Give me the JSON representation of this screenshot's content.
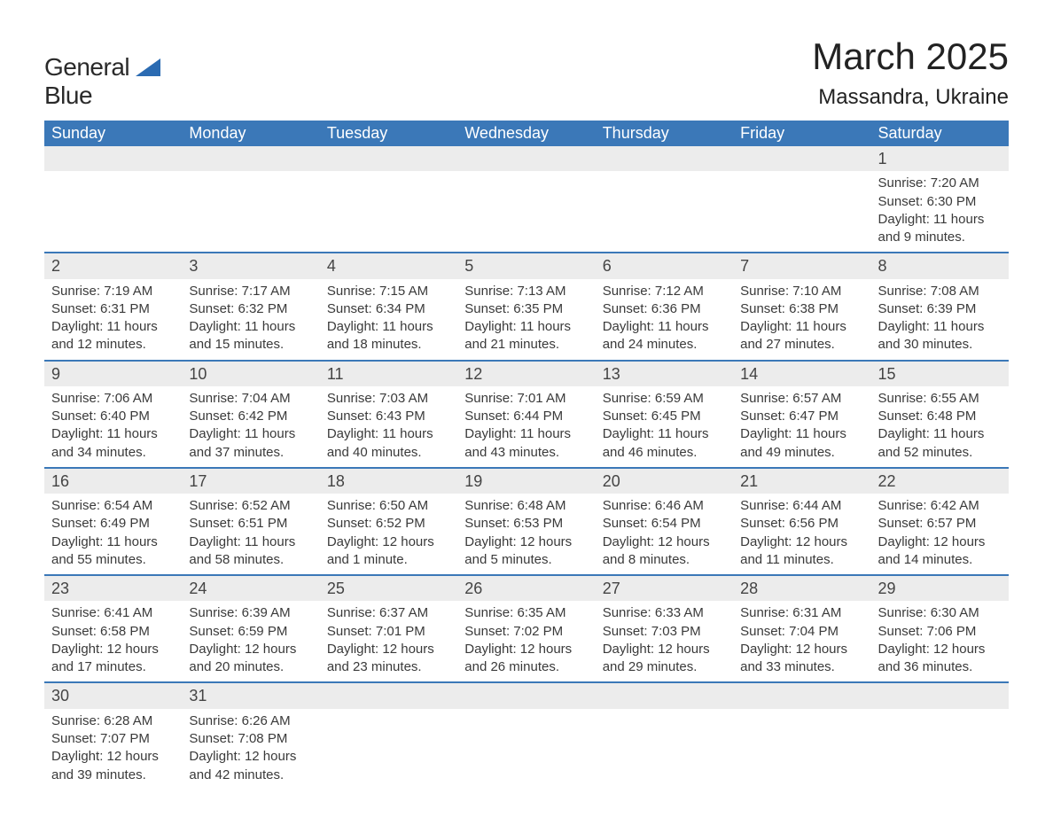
{
  "brand": {
    "name_part1": "General",
    "name_part2": "Blue",
    "arrow_color": "#2b6bb2"
  },
  "title": "March 2025",
  "location": "Massandra, Ukraine",
  "header_bg": "#3b78b8",
  "header_fg": "#ffffff",
  "divider_color": "#3b78b8",
  "daynum_bg": "#ececec",
  "text_color": "#3a3a3a",
  "columns": [
    "Sunday",
    "Monday",
    "Tuesday",
    "Wednesday",
    "Thursday",
    "Friday",
    "Saturday"
  ],
  "weeks": [
    [
      null,
      null,
      null,
      null,
      null,
      null,
      {
        "d": "1",
        "sunrise": "7:20 AM",
        "sunset": "6:30 PM",
        "daylight": "11 hours and 9 minutes."
      }
    ],
    [
      {
        "d": "2",
        "sunrise": "7:19 AM",
        "sunset": "6:31 PM",
        "daylight": "11 hours and 12 minutes."
      },
      {
        "d": "3",
        "sunrise": "7:17 AM",
        "sunset": "6:32 PM",
        "daylight": "11 hours and 15 minutes."
      },
      {
        "d": "4",
        "sunrise": "7:15 AM",
        "sunset": "6:34 PM",
        "daylight": "11 hours and 18 minutes."
      },
      {
        "d": "5",
        "sunrise": "7:13 AM",
        "sunset": "6:35 PM",
        "daylight": "11 hours and 21 minutes."
      },
      {
        "d": "6",
        "sunrise": "7:12 AM",
        "sunset": "6:36 PM",
        "daylight": "11 hours and 24 minutes."
      },
      {
        "d": "7",
        "sunrise": "7:10 AM",
        "sunset": "6:38 PM",
        "daylight": "11 hours and 27 minutes."
      },
      {
        "d": "8",
        "sunrise": "7:08 AM",
        "sunset": "6:39 PM",
        "daylight": "11 hours and 30 minutes."
      }
    ],
    [
      {
        "d": "9",
        "sunrise": "7:06 AM",
        "sunset": "6:40 PM",
        "daylight": "11 hours and 34 minutes."
      },
      {
        "d": "10",
        "sunrise": "7:04 AM",
        "sunset": "6:42 PM",
        "daylight": "11 hours and 37 minutes."
      },
      {
        "d": "11",
        "sunrise": "7:03 AM",
        "sunset": "6:43 PM",
        "daylight": "11 hours and 40 minutes."
      },
      {
        "d": "12",
        "sunrise": "7:01 AM",
        "sunset": "6:44 PM",
        "daylight": "11 hours and 43 minutes."
      },
      {
        "d": "13",
        "sunrise": "6:59 AM",
        "sunset": "6:45 PM",
        "daylight": "11 hours and 46 minutes."
      },
      {
        "d": "14",
        "sunrise": "6:57 AM",
        "sunset": "6:47 PM",
        "daylight": "11 hours and 49 minutes."
      },
      {
        "d": "15",
        "sunrise": "6:55 AM",
        "sunset": "6:48 PM",
        "daylight": "11 hours and 52 minutes."
      }
    ],
    [
      {
        "d": "16",
        "sunrise": "6:54 AM",
        "sunset": "6:49 PM",
        "daylight": "11 hours and 55 minutes."
      },
      {
        "d": "17",
        "sunrise": "6:52 AM",
        "sunset": "6:51 PM",
        "daylight": "11 hours and 58 minutes."
      },
      {
        "d": "18",
        "sunrise": "6:50 AM",
        "sunset": "6:52 PM",
        "daylight": "12 hours and 1 minute."
      },
      {
        "d": "19",
        "sunrise": "6:48 AM",
        "sunset": "6:53 PM",
        "daylight": "12 hours and 5 minutes."
      },
      {
        "d": "20",
        "sunrise": "6:46 AM",
        "sunset": "6:54 PM",
        "daylight": "12 hours and 8 minutes."
      },
      {
        "d": "21",
        "sunrise": "6:44 AM",
        "sunset": "6:56 PM",
        "daylight": "12 hours and 11 minutes."
      },
      {
        "d": "22",
        "sunrise": "6:42 AM",
        "sunset": "6:57 PM",
        "daylight": "12 hours and 14 minutes."
      }
    ],
    [
      {
        "d": "23",
        "sunrise": "6:41 AM",
        "sunset": "6:58 PM",
        "daylight": "12 hours and 17 minutes."
      },
      {
        "d": "24",
        "sunrise": "6:39 AM",
        "sunset": "6:59 PM",
        "daylight": "12 hours and 20 minutes."
      },
      {
        "d": "25",
        "sunrise": "6:37 AM",
        "sunset": "7:01 PM",
        "daylight": "12 hours and 23 minutes."
      },
      {
        "d": "26",
        "sunrise": "6:35 AM",
        "sunset": "7:02 PM",
        "daylight": "12 hours and 26 minutes."
      },
      {
        "d": "27",
        "sunrise": "6:33 AM",
        "sunset": "7:03 PM",
        "daylight": "12 hours and 29 minutes."
      },
      {
        "d": "28",
        "sunrise": "6:31 AM",
        "sunset": "7:04 PM",
        "daylight": "12 hours and 33 minutes."
      },
      {
        "d": "29",
        "sunrise": "6:30 AM",
        "sunset": "7:06 PM",
        "daylight": "12 hours and 36 minutes."
      }
    ],
    [
      {
        "d": "30",
        "sunrise": "6:28 AM",
        "sunset": "7:07 PM",
        "daylight": "12 hours and 39 minutes."
      },
      {
        "d": "31",
        "sunrise": "6:26 AM",
        "sunset": "7:08 PM",
        "daylight": "12 hours and 42 minutes."
      },
      null,
      null,
      null,
      null,
      null
    ]
  ],
  "labels": {
    "sunrise": "Sunrise:",
    "sunset": "Sunset:",
    "daylight": "Daylight:"
  }
}
